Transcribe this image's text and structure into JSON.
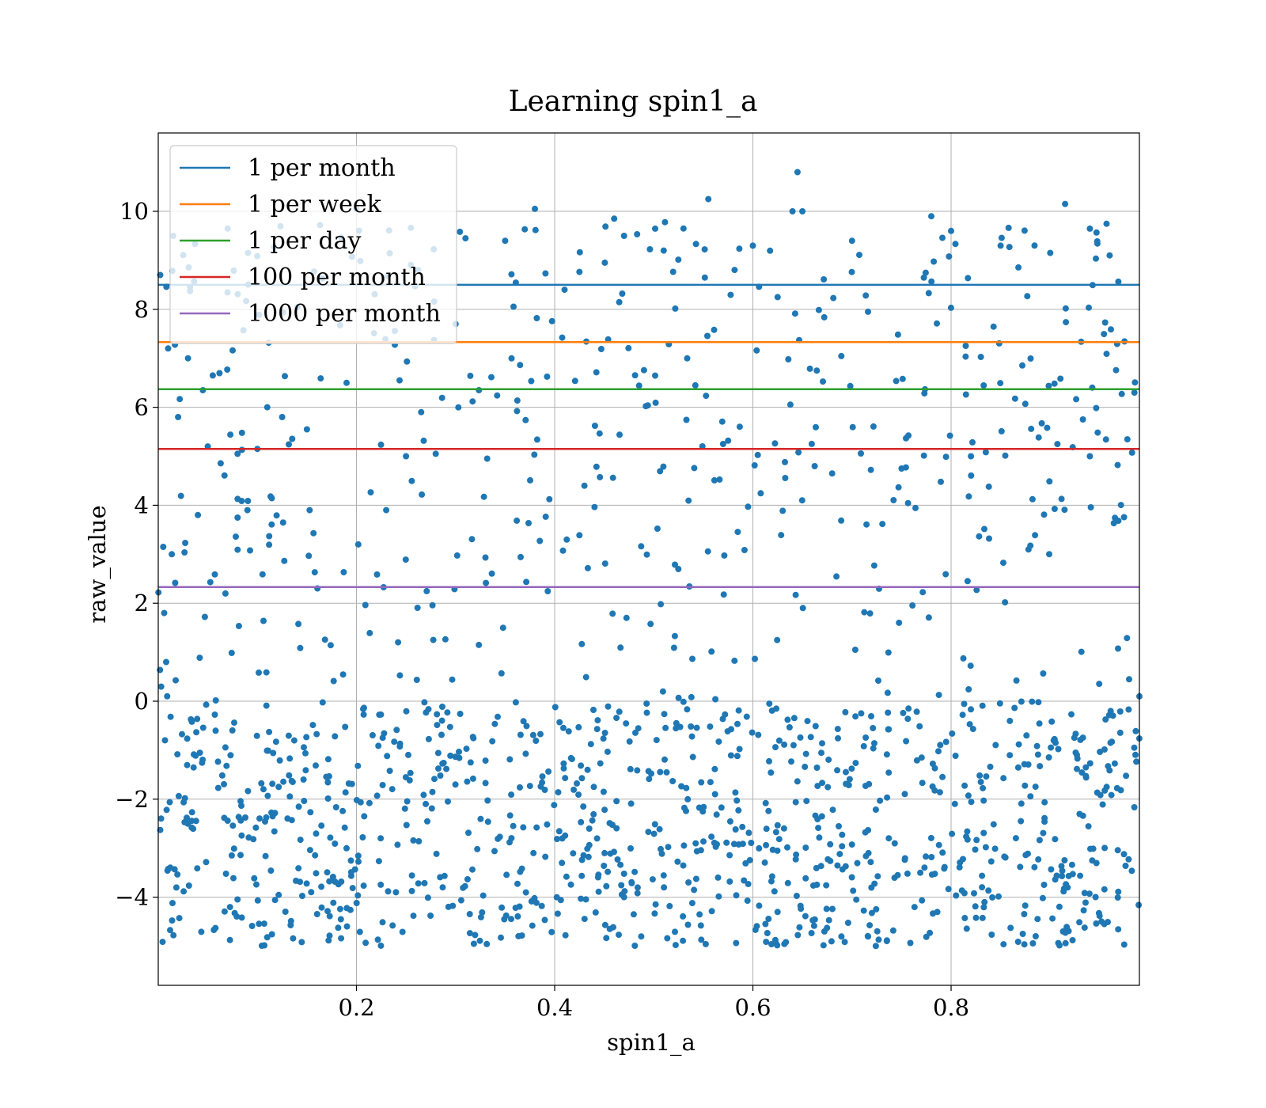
{
  "chart_data": {
    "type": "scatter",
    "title": "Learning spin1_a",
    "xlabel": "spin1_a",
    "ylabel": "raw_value",
    "xlim": [
      0.0,
      0.99
    ],
    "ylim": [
      -5.8,
      11.6
    ],
    "xticks": [
      0.2,
      0.4,
      0.6,
      0.8
    ],
    "xtick_labels": [
      "0.2",
      "0.4",
      "0.6",
      "0.8"
    ],
    "yticks": [
      -4,
      -2,
      0,
      2,
      4,
      6,
      8,
      10
    ],
    "ytick_labels": [
      "−4",
      "−2",
      "0",
      "2",
      "4",
      "6",
      "8",
      "10"
    ],
    "grid": true,
    "legend_position": "top-left",
    "point_color": "#1f77b4",
    "point_count_note": "about 1500 points, uniform in x over [0, 0.99], y from -5 to 10.8, densest between -5 and 0",
    "scatter_sample": [
      {
        "x": 0.002,
        "y": 8.7
      },
      {
        "x": 0.005,
        "y": 3.15
      },
      {
        "x": 0.006,
        "y": 1.8
      },
      {
        "x": 0.008,
        "y": 0.8
      },
      {
        "x": 0.009,
        "y": 0.1
      },
      {
        "x": 0.01,
        "y": 7.2
      },
      {
        "x": 0.015,
        "y": 9.5
      },
      {
        "x": 0.02,
        "y": 5.8
      },
      {
        "x": 0.03,
        "y": 7.0
      },
      {
        "x": 0.04,
        "y": 3.8
      },
      {
        "x": 0.045,
        "y": 6.35
      },
      {
        "x": 0.05,
        "y": 5.2
      },
      {
        "x": 0.055,
        "y": 6.65
      },
      {
        "x": 0.07,
        "y": 9.65
      },
      {
        "x": 0.08,
        "y": 5.05
      },
      {
        "x": 0.09,
        "y": 3.9
      },
      {
        "x": 0.1,
        "y": 5.15
      },
      {
        "x": 0.11,
        "y": 6.0
      },
      {
        "x": 0.125,
        "y": 5.8
      },
      {
        "x": 0.15,
        "y": 5.55
      },
      {
        "x": 0.19,
        "y": 6.5
      },
      {
        "x": 0.2,
        "y": 10.05
      },
      {
        "x": 0.23,
        "y": 3.9
      },
      {
        "x": 0.25,
        "y": 5.0
      },
      {
        "x": 0.28,
        "y": 5.05
      },
      {
        "x": 0.3,
        "y": 7.7
      },
      {
        "x": 0.31,
        "y": 9.45
      },
      {
        "x": 0.35,
        "y": 9.4
      },
      {
        "x": 0.38,
        "y": 10.05
      },
      {
        "x": 0.41,
        "y": 8.4
      },
      {
        "x": 0.43,
        "y": 4.4
      },
      {
        "x": 0.46,
        "y": 9.85
      },
      {
        "x": 0.47,
        "y": 9.5
      },
      {
        "x": 0.51,
        "y": 9.2
      },
      {
        "x": 0.53,
        "y": 9.65
      },
      {
        "x": 0.555,
        "y": 10.25
      },
      {
        "x": 0.57,
        "y": 5.25
      },
      {
        "x": 0.6,
        "y": 9.3
      },
      {
        "x": 0.64,
        "y": 10.0
      },
      {
        "x": 0.645,
        "y": 10.8
      },
      {
        "x": 0.65,
        "y": 10.0
      },
      {
        "x": 0.68,
        "y": 4.65
      },
      {
        "x": 0.7,
        "y": 9.4
      },
      {
        "x": 0.75,
        "y": 4.75
      },
      {
        "x": 0.78,
        "y": 9.9
      },
      {
        "x": 0.8,
        "y": 9.6
      },
      {
        "x": 0.82,
        "y": 5.0
      },
      {
        "x": 0.85,
        "y": 9.3
      },
      {
        "x": 0.9,
        "y": 9.15
      },
      {
        "x": 0.915,
        "y": 10.15
      },
      {
        "x": 0.94,
        "y": 5.0
      },
      {
        "x": 0.96,
        "y": 9.1
      },
      {
        "x": 0.985,
        "y": 6.3
      },
      {
        "x": 0.99,
        "y": 0.1
      }
    ],
    "hlines": [
      {
        "name": "1 per month",
        "y": 8.5,
        "color": "#1f77b4"
      },
      {
        "name": "1 per week",
        "y": 7.33,
        "color": "#ff7f0e"
      },
      {
        "name": "1 per day",
        "y": 6.37,
        "color": "#2ca02c"
      },
      {
        "name": "100 per month",
        "y": 5.15,
        "color": "#d62728"
      },
      {
        "name": "1000 per month",
        "y": 2.33,
        "color": "#9467bd"
      }
    ]
  }
}
